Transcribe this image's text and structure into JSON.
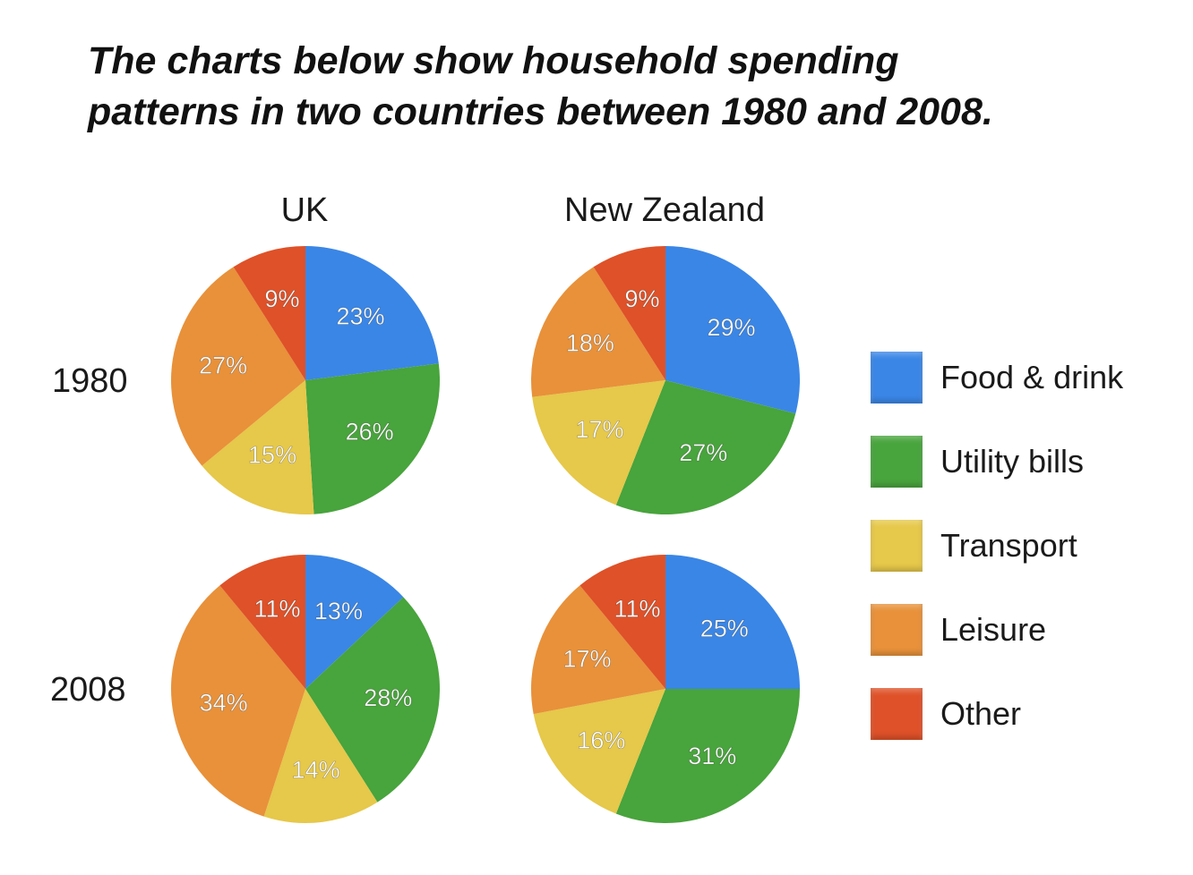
{
  "title_line1": "The charts below show household spending",
  "title_line2": "patterns in two countries between 1980 and 2008.",
  "columns": [
    "UK",
    "New Zealand"
  ],
  "rows": [
    "1980",
    "2008"
  ],
  "colors": {
    "Food & drink": "#3a86e6",
    "Utility bills": "#48a43c",
    "Transport": "#e6c84a",
    "Leisure": "#e8913a",
    "Other": "#df5128"
  },
  "legend": [
    "Food & drink",
    "Utility bills",
    "Transport",
    "Leisure",
    "Other"
  ],
  "chart_data": [
    {
      "type": "pie",
      "country": "UK",
      "year": "1980",
      "categories": [
        "Food & drink",
        "Utility bills",
        "Transport",
        "Leisure",
        "Other"
      ],
      "values": [
        23,
        26,
        15,
        27,
        9
      ],
      "labels": [
        "23%",
        "26%",
        "15%",
        "27%",
        "9%"
      ]
    },
    {
      "type": "pie",
      "country": "New Zealand",
      "year": "1980",
      "categories": [
        "Food & drink",
        "Utility bills",
        "Transport",
        "Leisure",
        "Other"
      ],
      "values": [
        29,
        27,
        17,
        18,
        9
      ],
      "labels": [
        "29%",
        "27%",
        "17%",
        "18%",
        "9%"
      ]
    },
    {
      "type": "pie",
      "country": "UK",
      "year": "2008",
      "categories": [
        "Food & drink",
        "Utility bills",
        "Transport",
        "Leisure",
        "Other"
      ],
      "values": [
        13,
        28,
        14,
        34,
        11
      ],
      "labels": [
        "13%",
        "28%",
        "14%",
        "34%",
        "11%"
      ]
    },
    {
      "type": "pie",
      "country": "New Zealand",
      "year": "2008",
      "categories": [
        "Food & drink",
        "Utility bills",
        "Transport",
        "Leisure",
        "Other"
      ],
      "values": [
        25,
        31,
        16,
        17,
        11
      ],
      "labels": [
        "25%",
        "31%",
        "16%",
        "17%",
        "11%"
      ]
    }
  ]
}
